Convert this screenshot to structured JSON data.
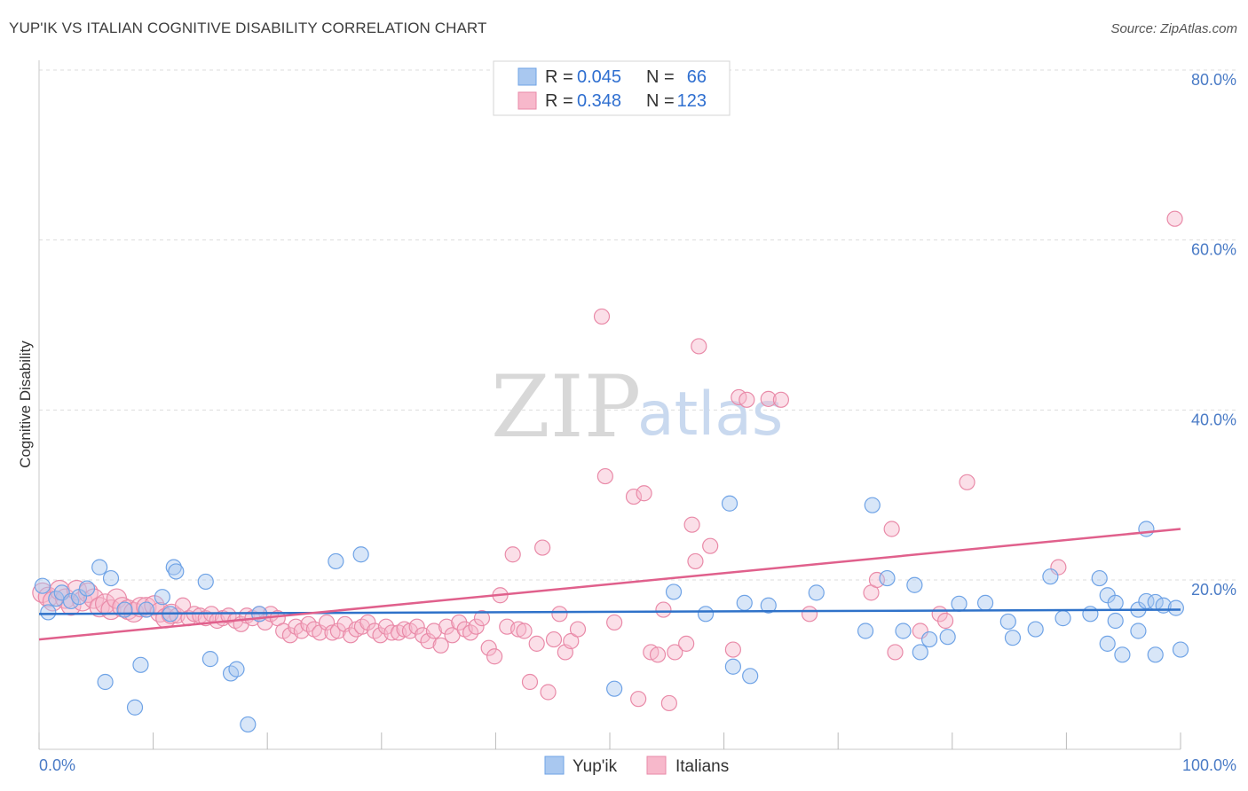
{
  "header": {
    "title": "YUP'IK VS ITALIAN COGNITIVE DISABILITY CORRELATION CHART",
    "source": "Source: ZipAtlas.com"
  },
  "watermark": {
    "zip": "ZIP",
    "atlas": "atlas"
  },
  "legend": {
    "rows": [
      {
        "r_label": "R =",
        "r_value": "0.045",
        "n_label": "N =",
        "n_value": "66",
        "color": "#a9c8f0"
      },
      {
        "r_label": "R =",
        "r_value": "0.348",
        "n_label": "N =",
        "n_value": "123",
        "color": "#f7b8cb"
      }
    ]
  },
  "bottom_legend": [
    "Yup'ik",
    "Italians"
  ],
  "chart_data": {
    "type": "scatter",
    "title": "YUP'IK VS ITALIAN COGNITIVE DISABILITY CORRELATION CHART",
    "xlabel": "",
    "ylabel": "Cognitive Disability",
    "xlim": [
      0,
      100
    ],
    "ylim": [
      0,
      85
    ],
    "x_tick_labels": [
      "0.0%",
      "100.0%"
    ],
    "y_ticks": [
      20,
      40,
      60,
      80
    ],
    "y_tick_labels": [
      "20.0%",
      "40.0%",
      "60.0%",
      "80.0%"
    ],
    "grid": "horizontal dashed",
    "legend_position": "top-center",
    "series": [
      {
        "name": "Yup'ik",
        "color": "#6fa3e6",
        "fill": "#a9c8f0",
        "trend_color": "#2f72c9",
        "trend": {
          "x": [
            0,
            100
          ],
          "y": [
            16.0,
            16.5
          ]
        },
        "points": [
          [
            0.3,
            19.3
          ],
          [
            0.8,
            16.2
          ],
          [
            1.5,
            17.8
          ],
          [
            2.0,
            18.5
          ],
          [
            2.8,
            17.5
          ],
          [
            3.5,
            18.0
          ],
          [
            4.2,
            19.0
          ],
          [
            5.3,
            21.5
          ],
          [
            5.8,
            8.0
          ],
          [
            6.3,
            20.2
          ],
          [
            7.5,
            16.5
          ],
          [
            8.4,
            5.0
          ],
          [
            8.9,
            10.0
          ],
          [
            9.4,
            16.5
          ],
          [
            10.8,
            18.0
          ],
          [
            11.5,
            16.0
          ],
          [
            11.8,
            21.5
          ],
          [
            12.0,
            21.0
          ],
          [
            14.6,
            19.8
          ],
          [
            15.0,
            10.7
          ],
          [
            16.8,
            9.0
          ],
          [
            17.3,
            9.5
          ],
          [
            18.3,
            3.0
          ],
          [
            19.3,
            16.0
          ],
          [
            26.0,
            22.2
          ],
          [
            28.2,
            23.0
          ],
          [
            50.4,
            7.2
          ],
          [
            55.6,
            18.6
          ],
          [
            58.4,
            16.0
          ],
          [
            60.5,
            29.0
          ],
          [
            60.8,
            9.8
          ],
          [
            61.8,
            17.3
          ],
          [
            62.3,
            8.7
          ],
          [
            63.9,
            17.0
          ],
          [
            68.1,
            18.5
          ],
          [
            72.4,
            14.0
          ],
          [
            74.3,
            20.2
          ],
          [
            75.7,
            14.0
          ],
          [
            76.7,
            19.4
          ],
          [
            77.2,
            11.5
          ],
          [
            78.0,
            13.0
          ],
          [
            79.6,
            13.3
          ],
          [
            80.6,
            17.2
          ],
          [
            82.9,
            17.3
          ],
          [
            84.9,
            15.1
          ],
          [
            85.3,
            13.2
          ],
          [
            87.3,
            14.2
          ],
          [
            88.6,
            20.4
          ],
          [
            89.7,
            15.5
          ],
          [
            92.1,
            16.0
          ],
          [
            92.9,
            20.2
          ],
          [
            93.6,
            18.2
          ],
          [
            93.6,
            12.5
          ],
          [
            94.3,
            15.2
          ],
          [
            94.3,
            17.3
          ],
          [
            94.9,
            11.2
          ],
          [
            96.3,
            14.0
          ],
          [
            96.3,
            16.5
          ],
          [
            97.0,
            17.5
          ],
          [
            97.0,
            26.0
          ],
          [
            97.8,
            11.2
          ],
          [
            97.8,
            17.4
          ],
          [
            98.5,
            17.0
          ],
          [
            99.6,
            16.7
          ],
          [
            100.0,
            11.8
          ],
          [
            73.0,
            28.8
          ]
        ]
      },
      {
        "name": "Italians",
        "color": "#e98aa8",
        "fill": "#f7b8cb",
        "trend_color": "#e0608c",
        "trend": {
          "x": [
            0,
            100
          ],
          "y": [
            13.0,
            26.0
          ]
        },
        "points": [
          [
            0.3,
            18.5
          ],
          [
            0.8,
            18.0
          ],
          [
            1.2,
            17.5
          ],
          [
            1.8,
            18.8
          ],
          [
            2.3,
            17.8
          ],
          [
            2.8,
            17.0
          ],
          [
            3.3,
            18.8
          ],
          [
            3.8,
            17.5
          ],
          [
            4.3,
            18.5
          ],
          [
            4.8,
            17.8
          ],
          [
            5.3,
            16.8
          ],
          [
            5.8,
            17.2
          ],
          [
            6.3,
            16.5
          ],
          [
            6.8,
            17.8
          ],
          [
            7.3,
            16.8
          ],
          [
            7.8,
            16.5
          ],
          [
            8.3,
            16.2
          ],
          [
            8.9,
            16.8
          ],
          [
            9.4,
            16.8
          ],
          [
            10.1,
            17.0
          ],
          [
            10.6,
            16.2
          ],
          [
            11.1,
            15.5
          ],
          [
            11.6,
            16.0
          ],
          [
            12.1,
            15.8
          ],
          [
            12.6,
            17.0
          ],
          [
            13.1,
            15.5
          ],
          [
            13.6,
            16.0
          ],
          [
            14.1,
            15.8
          ],
          [
            14.6,
            15.5
          ],
          [
            15.1,
            16.0
          ],
          [
            15.6,
            15.2
          ],
          [
            16.1,
            15.5
          ],
          [
            16.6,
            15.8
          ],
          [
            17.2,
            15.2
          ],
          [
            17.7,
            14.8
          ],
          [
            18.2,
            15.8
          ],
          [
            18.7,
            15.5
          ],
          [
            19.3,
            16.0
          ],
          [
            19.8,
            15.0
          ],
          [
            20.3,
            16.0
          ],
          [
            20.9,
            15.5
          ],
          [
            21.4,
            14.0
          ],
          [
            22.0,
            13.5
          ],
          [
            22.5,
            14.5
          ],
          [
            23.0,
            14.0
          ],
          [
            23.6,
            14.8
          ],
          [
            24.1,
            14.2
          ],
          [
            24.6,
            13.8
          ],
          [
            25.2,
            15.0
          ],
          [
            25.7,
            13.8
          ],
          [
            26.2,
            14.0
          ],
          [
            26.8,
            14.8
          ],
          [
            27.3,
            13.5
          ],
          [
            27.8,
            14.2
          ],
          [
            28.3,
            14.5
          ],
          [
            28.8,
            15.0
          ],
          [
            29.4,
            14.0
          ],
          [
            29.9,
            13.5
          ],
          [
            30.4,
            14.5
          ],
          [
            30.9,
            13.8
          ],
          [
            31.5,
            13.8
          ],
          [
            32.0,
            14.2
          ],
          [
            32.5,
            14.0
          ],
          [
            33.1,
            14.5
          ],
          [
            33.6,
            13.5
          ],
          [
            34.1,
            12.8
          ],
          [
            34.6,
            14.0
          ],
          [
            35.2,
            12.3
          ],
          [
            35.7,
            14.5
          ],
          [
            36.2,
            13.5
          ],
          [
            36.8,
            15.0
          ],
          [
            37.3,
            14.2
          ],
          [
            37.8,
            13.8
          ],
          [
            38.3,
            14.5
          ],
          [
            38.8,
            15.5
          ],
          [
            39.4,
            12.0
          ],
          [
            39.9,
            11.0
          ],
          [
            40.4,
            18.2
          ],
          [
            41.0,
            14.5
          ],
          [
            41.5,
            23.0
          ],
          [
            42.0,
            14.2
          ],
          [
            42.5,
            14.0
          ],
          [
            43.0,
            8.0
          ],
          [
            43.6,
            12.5
          ],
          [
            44.1,
            23.8
          ],
          [
            44.6,
            6.8
          ],
          [
            45.1,
            13.0
          ],
          [
            45.6,
            16.0
          ],
          [
            46.1,
            11.5
          ],
          [
            46.6,
            12.8
          ],
          [
            47.2,
            14.2
          ],
          [
            49.3,
            51.0
          ],
          [
            49.6,
            32.2
          ],
          [
            50.4,
            15.0
          ],
          [
            52.1,
            29.8
          ],
          [
            52.5,
            6.0
          ],
          [
            53.0,
            30.2
          ],
          [
            53.6,
            11.5
          ],
          [
            54.2,
            11.2
          ],
          [
            54.7,
            16.5
          ],
          [
            55.2,
            5.5
          ],
          [
            55.7,
            11.5
          ],
          [
            56.7,
            12.5
          ],
          [
            57.2,
            26.5
          ],
          [
            57.5,
            22.2
          ],
          [
            57.8,
            47.5
          ],
          [
            58.8,
            24.0
          ],
          [
            60.8,
            11.8
          ],
          [
            61.3,
            41.5
          ],
          [
            62.0,
            41.2
          ],
          [
            63.9,
            41.3
          ],
          [
            65.0,
            41.2
          ],
          [
            67.5,
            16.0
          ],
          [
            72.9,
            18.5
          ],
          [
            73.4,
            20.0
          ],
          [
            74.7,
            26.0
          ],
          [
            75.0,
            11.5
          ],
          [
            77.2,
            14.0
          ],
          [
            78.9,
            16.0
          ],
          [
            79.4,
            15.2
          ],
          [
            81.3,
            31.5
          ],
          [
            89.3,
            21.5
          ],
          [
            99.5,
            62.5
          ]
        ]
      }
    ]
  }
}
